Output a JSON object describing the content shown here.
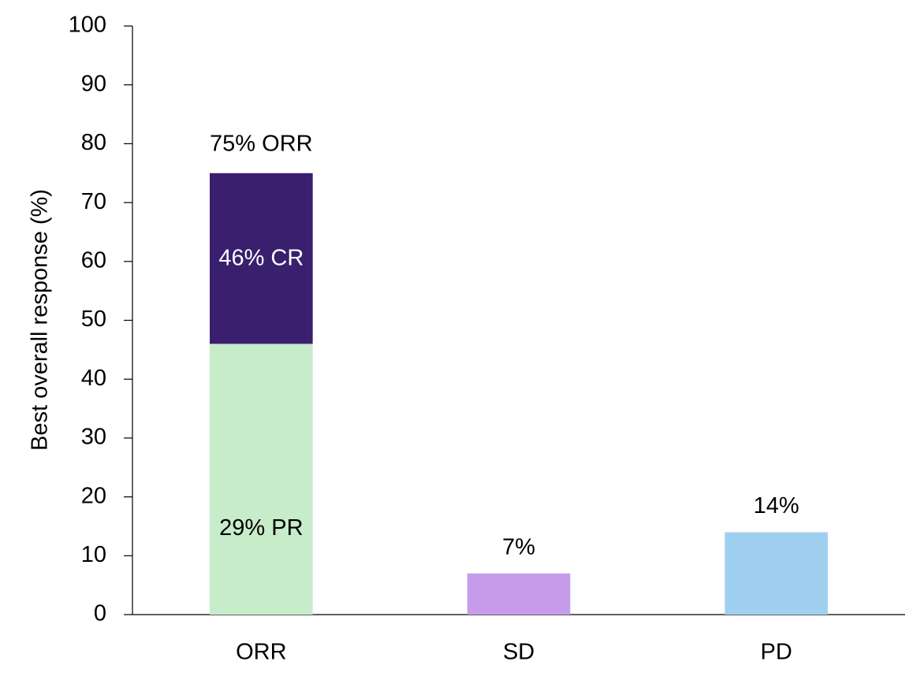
{
  "chart_data": {
    "type": "stacked-bar",
    "y_label": "Best overall response (%)",
    "categories": [
      "ORR",
      "SD",
      "PD"
    ],
    "series": [
      {
        "color": "#c6ecc9",
        "values": [
          46,
          null,
          null
        ]
      },
      {
        "color": "#3a1f6e",
        "values": [
          29,
          null,
          null
        ]
      },
      {
        "color": "#c69cea",
        "values": [
          null,
          7,
          null
        ],
        "value_labels": [
          null,
          "7%",
          null
        ]
      },
      {
        "color": "#a0d0f0",
        "values": [
          null,
          null,
          14
        ],
        "value_labels": [
          null,
          null,
          "14%"
        ]
      }
    ],
    "annotations": [
      "75% ORR",
      "46% CR",
      "29% PR"
    ],
    "ylim": [
      0,
      100
    ],
    "yticks": [
      0,
      10,
      20,
      30,
      40,
      50,
      60,
      70,
      80,
      90,
      100
    ],
    "grid": false
  }
}
